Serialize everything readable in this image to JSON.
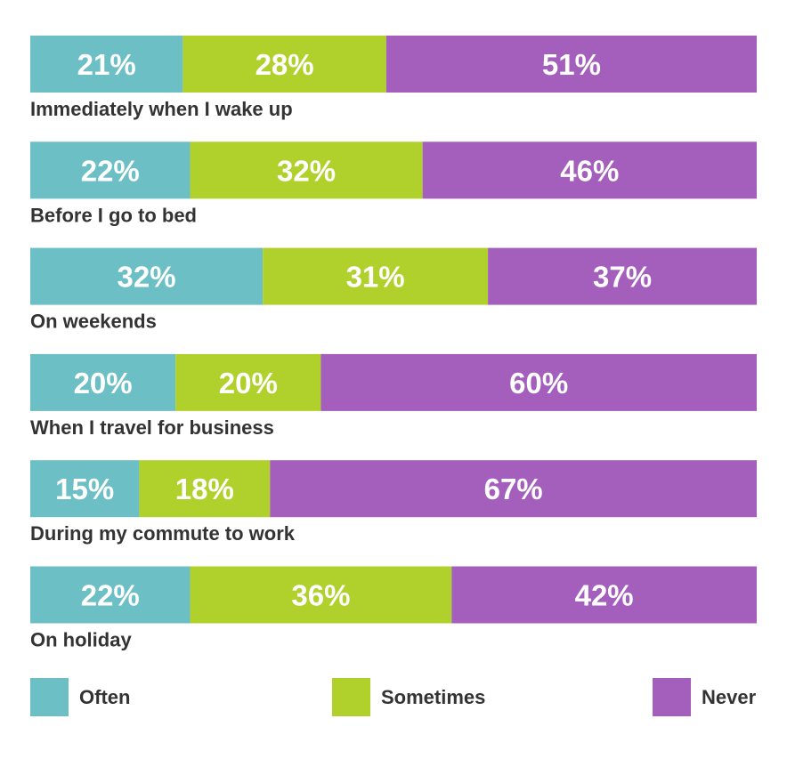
{
  "chart_data": {
    "type": "bar",
    "orientation": "horizontal",
    "stacked": true,
    "categories": [
      "Immediately when I wake up",
      "Before I go to bed",
      "On weekends",
      "When I travel for business",
      "During my commute to work",
      "On holiday"
    ],
    "series": [
      {
        "name": "Often",
        "color": "#6cbfc4",
        "values": [
          21,
          22,
          32,
          20,
          15,
          22
        ],
        "labels": [
          "21%",
          "22%",
          "32%",
          "20%",
          "15%",
          "22%"
        ]
      },
      {
        "name": "Sometimes",
        "color": "#b0d12c",
        "values": [
          28,
          32,
          31,
          20,
          18,
          36
        ],
        "labels": [
          "28%",
          "32%",
          "31%",
          "20%",
          "18%",
          "36%"
        ]
      },
      {
        "name": "Never",
        "color": "#a45fbc",
        "values": [
          51,
          46,
          37,
          60,
          67,
          42
        ],
        "labels": [
          "51%",
          "46%",
          "37%",
          "60%",
          "67%",
          "42%"
        ]
      }
    ],
    "xlim": [
      0,
      100
    ],
    "grid": false,
    "legend_position": "bottom"
  }
}
